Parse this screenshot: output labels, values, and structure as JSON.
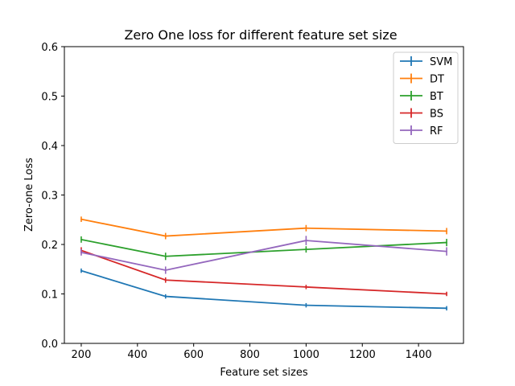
{
  "chart_data": {
    "type": "line",
    "title": "Zero One loss for different feature set size",
    "xlabel": "Feature set sizes",
    "ylabel": "Zero-one Loss",
    "xlim": [
      140,
      1560
    ],
    "ylim": [
      0,
      0.6
    ],
    "xticks": [
      200,
      400,
      600,
      800,
      1000,
      1200,
      1400
    ],
    "xtick_labels": [
      "200",
      "400",
      "600",
      "800",
      "1000",
      "1200",
      "1400"
    ],
    "yticks": [
      0,
      0.1,
      0.2,
      0.3,
      0.4,
      0.5,
      0.6
    ],
    "ytick_labels": [
      "0.0",
      "0.1",
      "0.2",
      "0.3",
      "0.4",
      "0.5",
      "0.6"
    ],
    "grid": false,
    "legend_position": "top-right",
    "error_bars": true,
    "x": [
      200,
      500,
      1000,
      1500
    ],
    "series": [
      {
        "name": "SVM",
        "color": "#1f77b4",
        "values": [
          0.147,
          0.095,
          0.077,
          0.071
        ],
        "errors": [
          0.002,
          0.002,
          0.002,
          0.002
        ]
      },
      {
        "name": "DT",
        "color": "#ff7f0e",
        "values": [
          0.251,
          0.217,
          0.233,
          0.227
        ],
        "errors": [
          0.003,
          0.004,
          0.004,
          0.004
        ]
      },
      {
        "name": "BT",
        "color": "#2ca02c",
        "values": [
          0.21,
          0.176,
          0.19,
          0.204
        ],
        "errors": [
          0.004,
          0.005,
          0.004,
          0.005
        ]
      },
      {
        "name": "BS",
        "color": "#d62728",
        "values": [
          0.188,
          0.128,
          0.114,
          0.1
        ],
        "errors": [
          0.004,
          0.003,
          0.002,
          0.002
        ]
      },
      {
        "name": "RF",
        "color": "#9467bd",
        "values": [
          0.184,
          0.148,
          0.208,
          0.186
        ],
        "errors": [
          0.004,
          0.005,
          0.007,
          0.006
        ]
      }
    ]
  }
}
